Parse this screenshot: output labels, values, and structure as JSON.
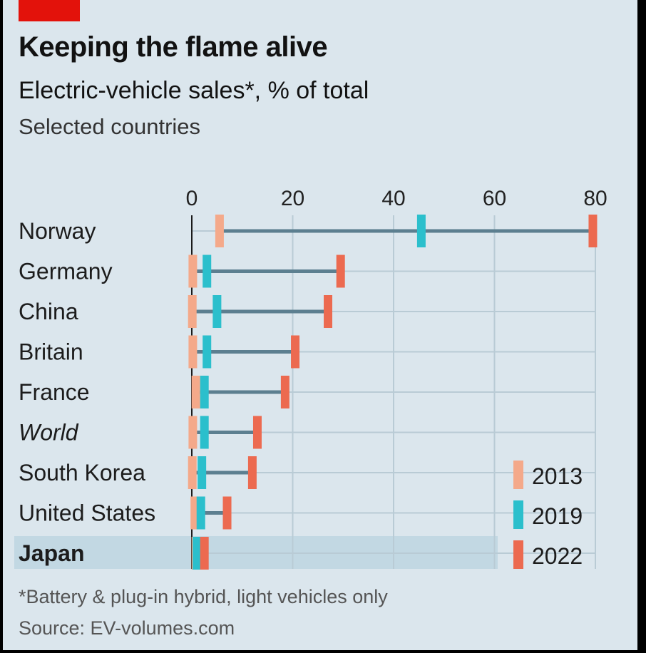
{
  "header": {
    "title": "Keeping the flame alive",
    "subtitle": "Electric-vehicle sales*, % of total",
    "subsubtitle": "Selected countries"
  },
  "footer": {
    "footnote": "*Battery & plug-in hybrid, light vehicles only",
    "source": "Source: EV-volumes.com"
  },
  "colors": {
    "y2013": "#f4a98a",
    "y2019": "#2bbfcc",
    "y2022": "#ec6a50",
    "connector": "#5c7f90",
    "gridline": "#b9cbd5",
    "highlight": "#c2d8e3",
    "brand": "#e3120b"
  },
  "chart_data": {
    "type": "dot-range",
    "title": "Keeping the flame alive",
    "subtitle": "Electric-vehicle sales*, % of total",
    "xlabel": "",
    "ylabel": "",
    "xlim": [
      0,
      80
    ],
    "xticks": [
      "0",
      "20",
      "40",
      "60",
      "80"
    ],
    "legend_position": "bottom-right",
    "highlight_category": "Japan",
    "italic_category": "World",
    "series": [
      {
        "name": "2013",
        "color": "#f4a98a"
      },
      {
        "name": "2019",
        "color": "#2bbfcc"
      },
      {
        "name": "2022",
        "color": "#ec6a50"
      }
    ],
    "categories": [
      {
        "label": "Norway",
        "values": [
          5.5,
          45.5,
          79.5
        ]
      },
      {
        "label": "Germany",
        "values": [
          0.2,
          3.0,
          29.5
        ]
      },
      {
        "label": "China",
        "values": [
          0.1,
          5.0,
          27.0
        ]
      },
      {
        "label": "Britain",
        "values": [
          0.2,
          3.0,
          20.5
        ]
      },
      {
        "label": "France",
        "values": [
          0.8,
          2.5,
          18.5
        ]
      },
      {
        "label": "World",
        "values": [
          0.2,
          2.5,
          13.0
        ]
      },
      {
        "label": "South Korea",
        "values": [
          0.1,
          2.0,
          12.0
        ]
      },
      {
        "label": "United States",
        "values": [
          0.6,
          1.8,
          7.0
        ]
      },
      {
        "label": "Japan",
        "values": [
          0.8,
          1.0,
          2.5
        ]
      }
    ]
  }
}
